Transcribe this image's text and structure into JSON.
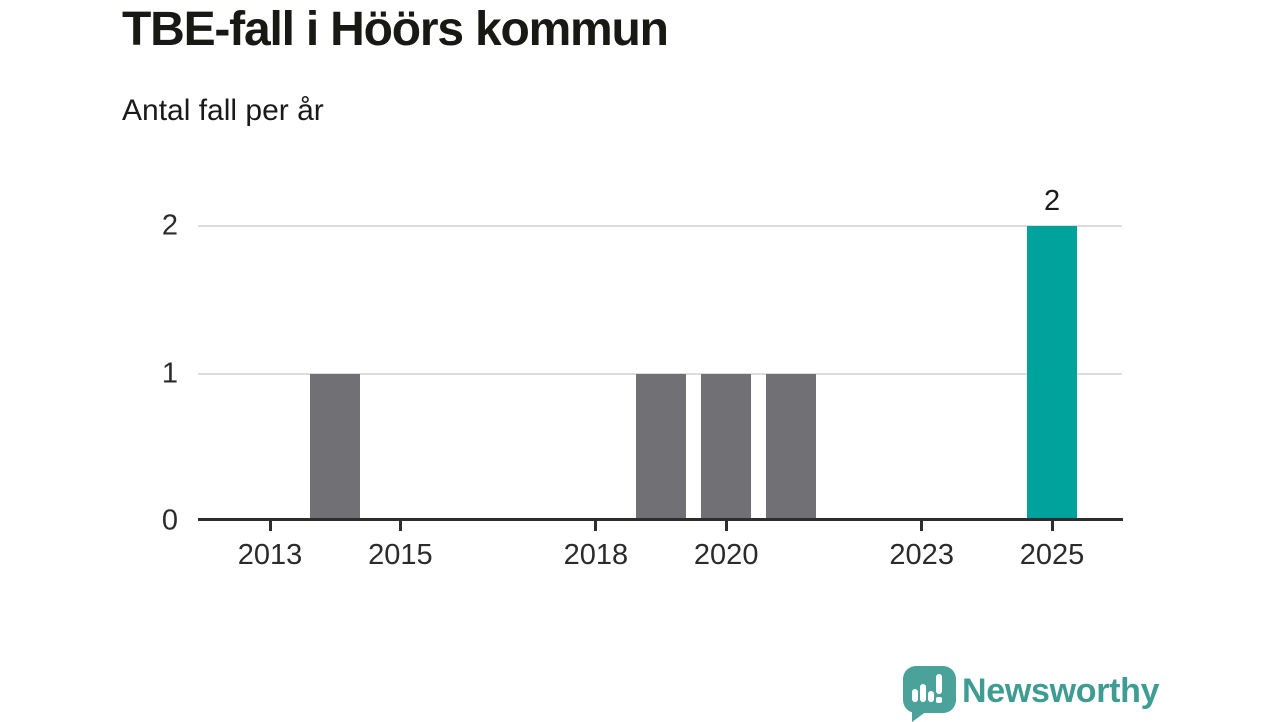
{
  "header": {
    "title": "TBE-fall i Höörs kommun",
    "subtitle": "Antal fall per år"
  },
  "chart_data": {
    "type": "bar",
    "title": "TBE-fall i Höörs kommun",
    "subtitle": "Antal fall per år",
    "categories": [
      2012,
      2013,
      2014,
      2015,
      2016,
      2017,
      2018,
      2019,
      2020,
      2021,
      2022,
      2023,
      2024,
      2025
    ],
    "values": [
      0,
      0,
      1,
      0,
      0,
      0,
      0,
      1,
      1,
      1,
      0,
      0,
      0,
      2
    ],
    "x_ticks": [
      "2013",
      "2015",
      "2018",
      "2020",
      "2023",
      "2025"
    ],
    "y_ticks": [
      "0",
      "1",
      "2"
    ],
    "ylim": [
      0,
      2
    ],
    "grid": "horizontal",
    "legend": "none",
    "bar_color": "#707075",
    "highlight_year": 2025,
    "highlight_color": "#00a39b",
    "data_labels": [
      {
        "year": 2025,
        "label": "2"
      }
    ],
    "axis_color": "#2d2d2d",
    "gridline_color": "#dcdcdc",
    "label_color": "#2b2b2b"
  },
  "footer": {
    "brand": "Newsworthy",
    "brand_color": "#3f9c93",
    "icon_color": "#4aa29a",
    "logo_icon": "bar-chart-speech-bubble-icon"
  }
}
